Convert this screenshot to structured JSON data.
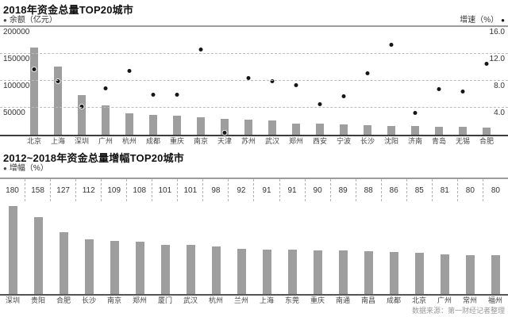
{
  "source_note": "数据来源：第一财经记者整理",
  "colors": {
    "bar": "#9e9e9e",
    "dot": "#161616",
    "grid_dashed": "#bcbcbc",
    "rule": "#9c9c9c",
    "axis": "#3d3d3d",
    "source_text": "#999999"
  },
  "chart1": {
    "bullet": "●",
    "legend_bar": "余额（亿元）",
    "legend_dot": "增速（%）"
  },
  "chart2": {
    "bullet": "●",
    "legend": "增幅（%）"
  },
  "chart_data": [
    {
      "type": "bar",
      "subtype": "bar+scatter-combo",
      "title": "2018年资金总量TOP20城市",
      "categories": [
        "北京",
        "上海",
        "深圳",
        "广州",
        "杭州",
        "成都",
        "重庆",
        "南京",
        "天津",
        "苏州",
        "武汉",
        "郑州",
        "西安",
        "宁波",
        "长沙",
        "沈阳",
        "济南",
        "青岛",
        "无锡",
        "合肥"
      ],
      "series": [
        {
          "name": "余额（亿元）",
          "type": "bar",
          "axis": "left",
          "values": [
            162000,
            127000,
            73000,
            54000,
            39000,
            36500,
            35000,
            32500,
            29500,
            28000,
            26500,
            21000,
            20000,
            18500,
            18000,
            16000,
            15500,
            14800,
            14300,
            13200
          ]
        },
        {
          "name": "增速（%）",
          "type": "scatter",
          "axis": "right",
          "values": [
            9.7,
            8.0,
            4.2,
            6.9,
            9.5,
            5.9,
            6.0,
            12.7,
            0.3,
            8.4,
            7.9,
            7.4,
            4.5,
            5.7,
            9.1,
            13.4,
            3.2,
            6.8,
            6.4,
            10.5
          ]
        }
      ],
      "y_left": {
        "label": "余额（亿元）",
        "range": [
          0,
          200000
        ],
        "ticks": [
          200000,
          150000,
          100000,
          50000
        ]
      },
      "y_right": {
        "label": "增速（%）",
        "range": [
          0,
          16
        ],
        "ticks": [
          "16.0",
          "12.0",
          "8.0",
          "4.0"
        ]
      },
      "grid": "horizontal-dashed",
      "legend_position": "top"
    },
    {
      "type": "bar",
      "title": "2012~2018年资金总量增幅TOP20城市",
      "categories": [
        "深圳",
        "贵阳",
        "合肥",
        "长沙",
        "南京",
        "郑州",
        "厦门",
        "武汉",
        "杭州",
        "兰州",
        "上海",
        "东莞",
        "重庆",
        "南通",
        "南昌",
        "成都",
        "北京",
        "广州",
        "常州",
        "福州"
      ],
      "values": [
        180,
        158,
        127,
        112,
        109,
        108,
        101,
        101,
        98,
        92,
        91,
        91,
        90,
        89,
        88,
        86,
        85,
        81,
        80,
        80
      ],
      "ylabel": "增幅（%）",
      "ylim": [
        0,
        190
      ],
      "data_labels": true,
      "grid": "off",
      "legend_position": "top"
    }
  ]
}
